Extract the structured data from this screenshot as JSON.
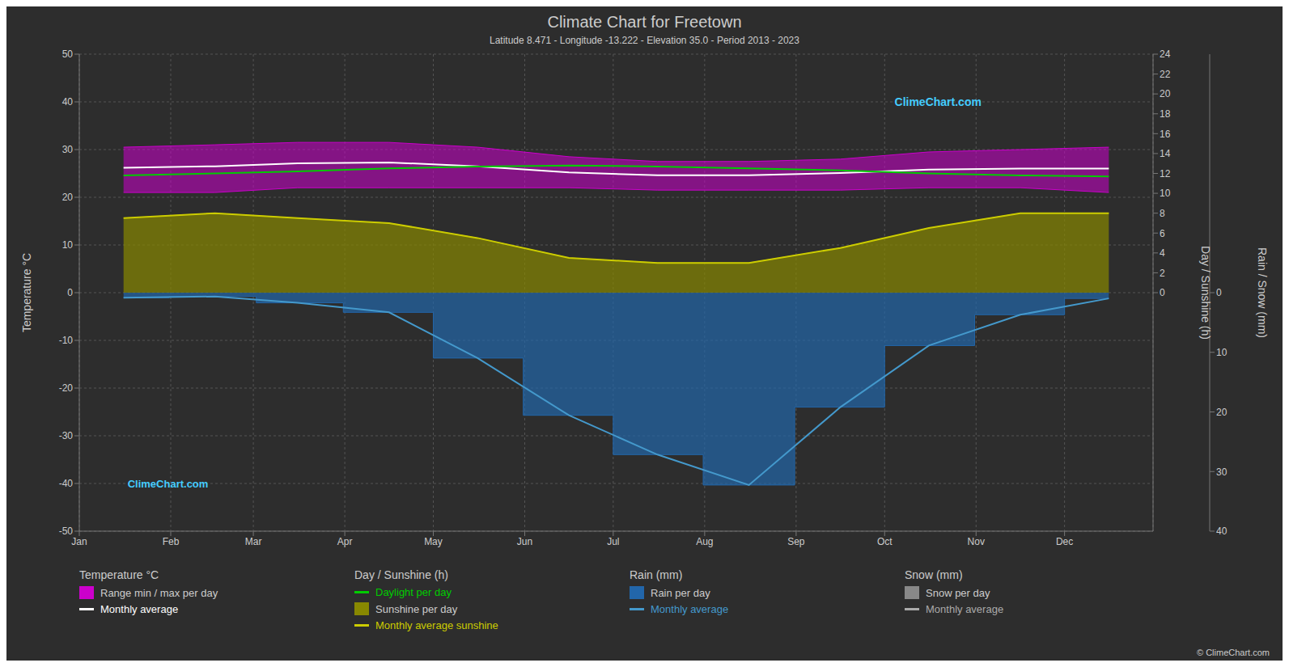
{
  "chart_data": {
    "type": "line",
    "title": "Climate Chart for Freetown",
    "subtitle": "Latitude 8.471 - Longitude -13.222 - Elevation 35.0 - Period 2013 - 2023",
    "x": [
      15,
      46,
      74,
      105,
      135,
      166,
      196,
      227,
      258,
      288,
      319,
      349
    ],
    "xlim": [
      0,
      364
    ],
    "xticks": [
      {
        "value": 0,
        "label": "Jan"
      },
      {
        "value": 31,
        "label": "Feb"
      },
      {
        "value": 59,
        "label": "Mar"
      },
      {
        "value": 90,
        "label": "Apr"
      },
      {
        "value": 120,
        "label": "May"
      },
      {
        "value": 151,
        "label": "Jun"
      },
      {
        "value": 181,
        "label": "Jul"
      },
      {
        "value": 212,
        "label": "Aug"
      },
      {
        "value": 243,
        "label": "Sep"
      },
      {
        "value": 273,
        "label": "Oct"
      },
      {
        "value": 304,
        "label": "Nov"
      },
      {
        "value": 334,
        "label": "Dec"
      }
    ],
    "ylim": [
      -50,
      50
    ],
    "yticks": [
      -50,
      -40,
      -30,
      -20,
      -10,
      0,
      10,
      20,
      30,
      40,
      50
    ],
    "ylabel": "Temperature °C",
    "y2lim": [
      -24,
      24
    ],
    "y2ticks": [
      0,
      2,
      4,
      6,
      8,
      10,
      12,
      14,
      16,
      18,
      20,
      22,
      24
    ],
    "y2label": "Day / Sunshine (h)",
    "y3lim": [
      40,
      -40
    ],
    "y3ticks": [
      0,
      10,
      20,
      30,
      40
    ],
    "y3label": "Rain / Snow (mm)",
    "grid": true,
    "legend": "bottom",
    "groups": [
      {
        "title": "Temperature °C",
        "series": [
          {
            "name": "Range min / max per day",
            "type": "range_area",
            "axis": "y",
            "color": "#cc00cc",
            "values": [
              [
                21.0,
                30.5
              ],
              [
                21.0,
                31.0
              ],
              [
                22.0,
                31.5
              ],
              [
                22.0,
                31.5
              ],
              [
                22.0,
                30.5
              ],
              [
                22.0,
                28.5
              ],
              [
                21.5,
                27.5
              ],
              [
                21.5,
                27.5
              ],
              [
                21.5,
                28.0
              ],
              [
                22.0,
                29.5
              ],
              [
                22.0,
                30.0
              ],
              [
                21.0,
                30.5
              ]
            ]
          },
          {
            "name": "Monthly average",
            "type": "line",
            "axis": "y",
            "color": "#ffffff",
            "values": [
              26.2,
              26.5,
              27.1,
              27.3,
              26.5,
              25.2,
              24.6,
              24.6,
              25.1,
              25.8,
              26.0,
              26.0
            ]
          }
        ]
      },
      {
        "title": "Day / Sunshine (h)",
        "series": [
          {
            "name": "Daylight per day",
            "type": "line",
            "axis": "y2",
            "color": "#00cc00",
            "values": [
              11.8,
              12.0,
              12.2,
              12.5,
              12.7,
              12.8,
              12.7,
              12.5,
              12.3,
              12.0,
              11.8,
              11.7
            ]
          },
          {
            "name": "Sunshine per day",
            "type": "area",
            "axis": "y2",
            "color": "#888800",
            "values": [
              7.5,
              8.0,
              7.5,
              7.0,
              5.5,
              3.5,
              3.0,
              3.0,
              4.5,
              6.5,
              8.0,
              8.0
            ]
          },
          {
            "name": "Monthly average sunshine",
            "type": "line",
            "axis": "y2",
            "color": "#cccc00",
            "values": [
              7.5,
              8.0,
              7.5,
              7.0,
              5.5,
              3.5,
              3.0,
              3.0,
              4.5,
              6.5,
              8.0,
              8.0
            ]
          }
        ]
      },
      {
        "title": "Rain (mm)",
        "series": [
          {
            "name": "Rain per day",
            "type": "step_area",
            "axis": "y3",
            "color": "#2266aa",
            "values": [
              0.8387096774,
              0.6428571429,
              1.7096774194,
              3.3,
              10.9677419355,
              20.5666666667,
              27.1612903226,
              32.2580645161,
              19.2,
              8.8709677419,
              3.7,
              0.9677419355
            ]
          },
          {
            "name": "Monthly average",
            "type": "line",
            "axis": "y3",
            "color": "#4499cc",
            "values": [
              0.8387096774,
              0.6428571429,
              1.7096774194,
              3.3,
              10.9677419355,
              20.5666666667,
              27.1612903226,
              32.2580645161,
              19.2,
              8.8709677419,
              3.7,
              0.9677419355
            ]
          }
        ]
      },
      {
        "title": "Snow (mm)",
        "series": [
          {
            "name": "Snow per day",
            "type": "area",
            "axis": "y3",
            "color": "#888888"
          },
          {
            "name": "Monthly average",
            "type": "line",
            "axis": "y3",
            "color": "#aaaaaa"
          }
        ]
      }
    ],
    "annotations": [
      {
        "text": "ClimeChart.com",
        "color": "#44ccff"
      },
      {
        "text": "ClimeChart.com",
        "color": "#44ccff"
      },
      {
        "text": "© ClimeChart.com"
      }
    ]
  }
}
